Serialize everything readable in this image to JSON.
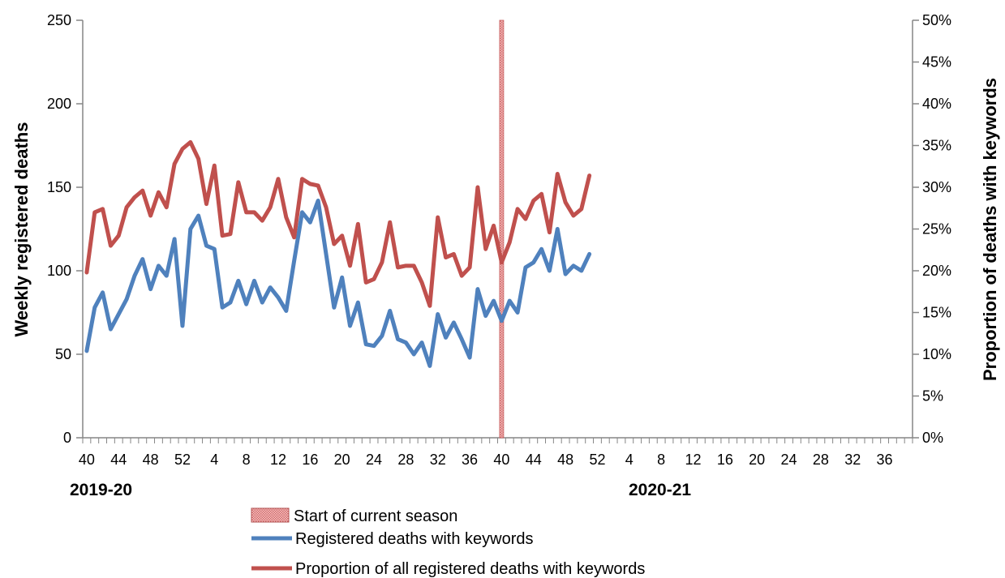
{
  "chart_data": {
    "type": "line",
    "x_tick_labels": [
      "40",
      "44",
      "48",
      "52",
      "4",
      "8",
      "12",
      "16",
      "20",
      "24",
      "28",
      "32",
      "36",
      "40",
      "44",
      "48",
      "52",
      "4",
      "8",
      "12",
      "16",
      "20",
      "24",
      "28",
      "32",
      "36"
    ],
    "season_labels": [
      "2019-20",
      "2020-21"
    ],
    "ylabel_left": "Weekly registered deaths",
    "ylabel_right": "Proportion of deaths with keywords",
    "ylim_left": [
      0,
      250
    ],
    "ylim_right": [
      0,
      50
    ],
    "left_ticks": [
      "0",
      "50",
      "100",
      "150",
      "200",
      "250"
    ],
    "right_ticks": [
      "0%",
      "5%",
      "10%",
      "15%",
      "20%",
      "25%",
      "30%",
      "35%",
      "40%",
      "45%",
      "50%"
    ],
    "season_start_week_index": 52,
    "series": [
      {
        "name": "Registered deaths with keywords",
        "axis": "left",
        "color": "#4F81BD",
        "values": [
          52,
          78,
          87,
          65,
          74,
          83,
          97,
          107,
          89,
          103,
          97,
          119,
          67,
          125,
          133,
          115,
          113,
          78,
          81,
          94,
          80,
          94,
          81,
          90,
          84,
          76,
          106,
          135,
          129,
          142,
          110,
          78,
          96,
          67,
          81,
          56,
          55,
          61,
          76,
          59,
          57,
          50,
          57,
          43,
          74,
          60,
          69,
          59,
          48,
          89,
          73,
          82,
          70,
          82,
          75,
          102,
          105,
          113,
          100,
          125,
          98,
          103,
          100,
          110
        ]
      },
      {
        "name": "Proportion of all registered deaths with keywords",
        "axis": "right",
        "color": "#C0504D",
        "values": [
          19.8,
          27.0,
          27.4,
          23.0,
          24.2,
          27.6,
          28.8,
          29.6,
          26.6,
          29.4,
          27.6,
          32.8,
          34.6,
          35.4,
          33.4,
          28.0,
          32.6,
          24.2,
          24.4,
          30.6,
          27.0,
          27.0,
          26.0,
          27.6,
          31.0,
          26.4,
          24.0,
          31.0,
          30.4,
          30.2,
          27.6,
          23.2,
          24.2,
          20.6,
          25.6,
          18.6,
          19.0,
          21.0,
          25.8,
          20.4,
          20.6,
          20.6,
          18.6,
          15.8,
          26.4,
          21.6,
          22.0,
          19.4,
          20.4,
          30.0,
          22.6,
          25.4,
          21.0,
          23.4,
          27.4,
          26.2,
          28.4,
          29.2,
          24.6,
          31.6,
          28.2,
          26.6,
          27.4,
          31.4
        ]
      }
    ],
    "legend": {
      "position": "bottom",
      "items": [
        {
          "label": "Start of current season",
          "kind": "patch",
          "color": "#E99A9A"
        },
        {
          "label": "Registered deaths with keywords",
          "kind": "line",
          "color": "#4F81BD"
        },
        {
          "label": "Proportion of all registered deaths with keywords",
          "kind": "line",
          "color": "#C0504D"
        }
      ]
    },
    "grid": false
  }
}
